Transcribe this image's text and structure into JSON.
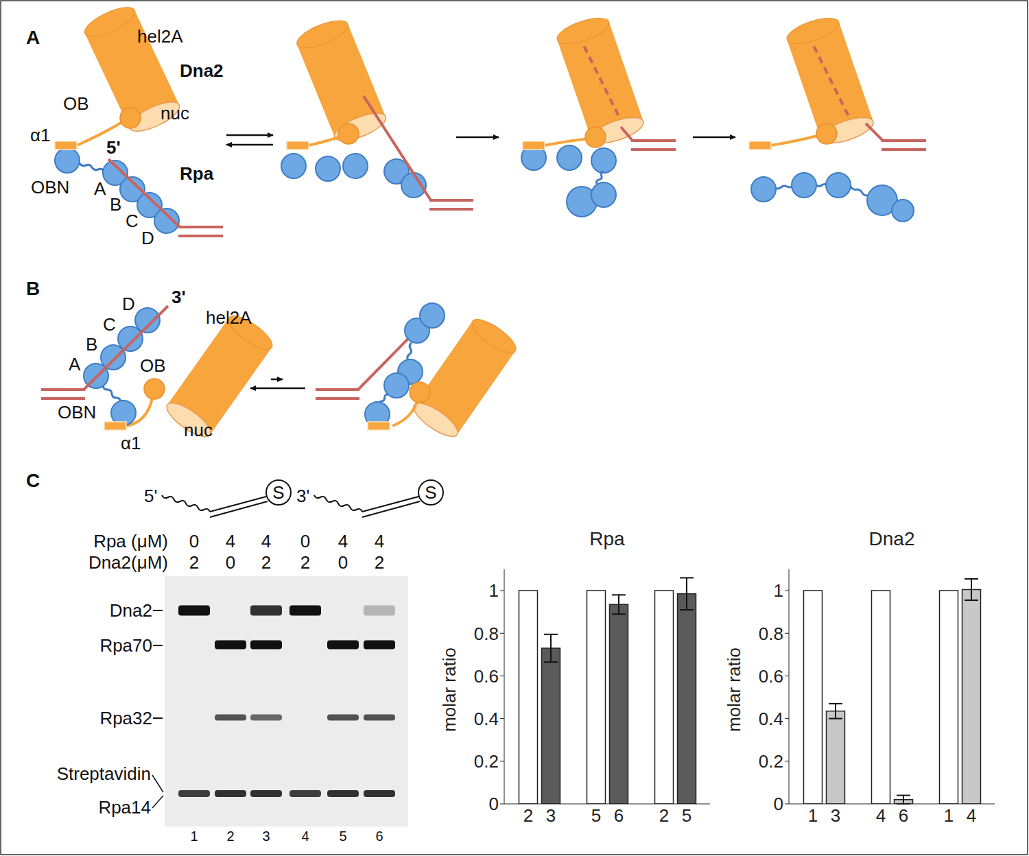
{
  "panel_a": {
    "label": "A",
    "hel2A": "hel2A",
    "dna2": "Dna2",
    "ob": "OB",
    "nuc": "nuc",
    "alpha1": "α1",
    "end": "5'",
    "rpa": "Rpa",
    "obn": "OBN",
    "rpa_domains": [
      "A",
      "B",
      "C",
      "D"
    ]
  },
  "panel_b": {
    "label": "B",
    "hel2A": "hel2A",
    "ob": "OB",
    "nuc": "nuc",
    "alpha1": "α1",
    "end": "3'",
    "obn": "OBN",
    "rpa_domains": [
      "A",
      "B",
      "C",
      "D"
    ]
  },
  "panel_c": {
    "label": "C",
    "substrates": [
      {
        "end": "5'",
        "tag": "S"
      },
      {
        "end": "3'",
        "tag": "S"
      }
    ],
    "conditions": [
      {
        "label": "Rpa (μM)",
        "values": [
          0,
          4,
          4,
          0,
          4,
          4
        ]
      },
      {
        "label": "Dna2(μM)",
        "values": [
          2,
          0,
          2,
          2,
          0,
          2
        ]
      }
    ],
    "bands": [
      "Dna2",
      "Rpa70",
      "Rpa32",
      "Streptavidin",
      "Rpa14"
    ],
    "lanes": [
      1,
      2,
      3,
      4,
      5,
      6
    ]
  },
  "chart_data": [
    {
      "type": "bar",
      "title": "Rpa",
      "ylabel": "molar ratio",
      "categories": [
        "2",
        "3",
        "5",
        "6",
        "2",
        "5"
      ],
      "values": [
        1,
        0.73,
        1,
        0.935,
        1,
        0.985
      ],
      "errors": [
        null,
        0.065,
        null,
        0.045,
        null,
        0.075
      ],
      "colors": [
        "#ffffff",
        "#5a5a5a",
        "#ffffff",
        "#5a5a5a",
        "#ffffff",
        "#5a5a5a"
      ],
      "ylim": [
        0,
        1.1
      ],
      "yticks": [
        0,
        0.2,
        0.4,
        0.6,
        0.8,
        1
      ]
    },
    {
      "type": "bar",
      "title": "Dna2",
      "ylabel": "molar ratio",
      "categories": [
        "1",
        "3",
        "4",
        "6",
        "1",
        "4"
      ],
      "values": [
        1,
        0.435,
        1,
        0.02,
        1,
        1.005
      ],
      "errors": [
        null,
        0.035,
        null,
        0.02,
        null,
        0.05
      ],
      "colors": [
        "#ffffff",
        "#c8c8c8",
        "#ffffff",
        "#c8c8c8",
        "#ffffff",
        "#c8c8c8"
      ],
      "ylim": [
        0,
        1.1
      ],
      "yticks": [
        0,
        0.2,
        0.4,
        0.6,
        0.8,
        1
      ]
    }
  ]
}
